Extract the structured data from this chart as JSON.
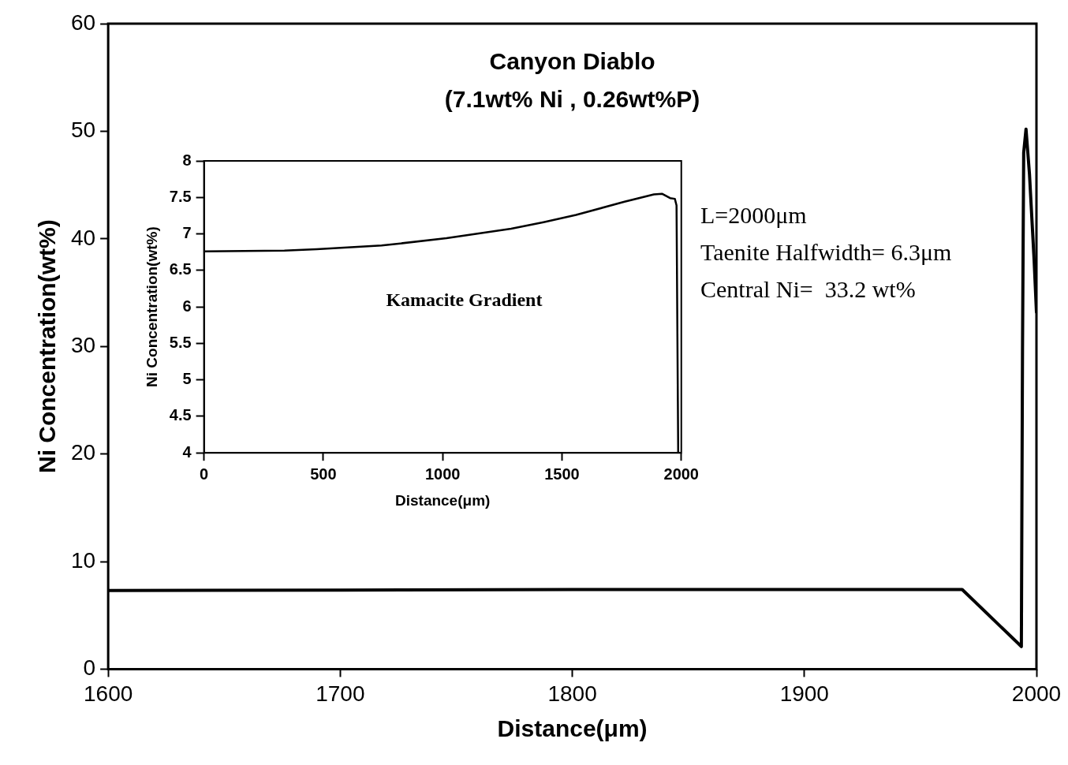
{
  "chart_data": [
    {
      "type": "line",
      "title": "Canyon Diablo",
      "subtitle": "(7.1wt% Ni , 0.26wt%P)",
      "xlabel": "Distance(μm)",
      "ylabel": "Ni Concentration(wt%)",
      "annotations": [
        "L=2000μm",
        "Taenite Halfwidth= 6.3μm",
        "Central Ni=  33.2 wt%"
      ],
      "x": [
        1600,
        1700,
        1800,
        1900,
        1968,
        1993.5,
        1994,
        1994.5,
        1995.5,
        1997,
        1999,
        2000
      ],
      "values": [
        7.3,
        7.35,
        7.4,
        7.4,
        7.4,
        2.1,
        30,
        48,
        50.2,
        46,
        38,
        33.2
      ],
      "color": "#000000",
      "xlim": [
        1600,
        2000
      ],
      "ylim": [
        0,
        60
      ],
      "xticks": [
        1600,
        1700,
        1800,
        1900,
        2000
      ],
      "yticks": [
        0,
        10,
        20,
        30,
        40,
        50,
        60
      ],
      "grid": false,
      "legend": false,
      "marker": "none"
    },
    {
      "type": "line",
      "xlabel": "Distance(μm)",
      "ylabel": "Ni Concentration(wt%)",
      "annotations": [
        "Kamacite Gradient"
      ],
      "x": [
        0,
        337,
        472,
        744,
        1016,
        1287,
        1423,
        1559,
        1762,
        1885,
        1919,
        1953,
        1973,
        1980,
        1987
      ],
      "values": [
        6.76,
        6.77,
        6.79,
        6.84,
        6.94,
        7.07,
        7.16,
        7.26,
        7.44,
        7.54,
        7.55,
        7.49,
        7.48,
        7.39,
        4
      ],
      "color": "#000000",
      "xlim": [
        0,
        2000
      ],
      "ylim": [
        4,
        8
      ],
      "xticks": [
        0,
        500,
        1000,
        1500,
        2000
      ],
      "yticks": [
        4,
        4.5,
        5,
        5.5,
        6,
        6.5,
        7,
        7.5,
        8
      ],
      "grid": false,
      "legend": false,
      "marker": "none"
    }
  ]
}
